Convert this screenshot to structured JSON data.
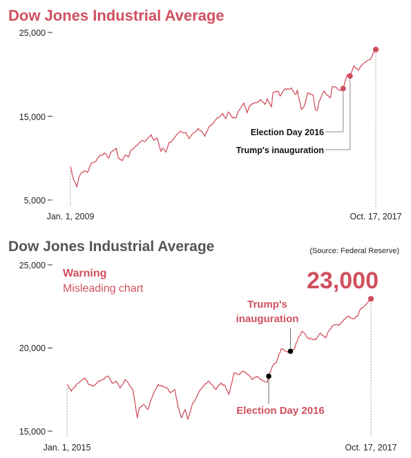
{
  "chart_data": [
    {
      "type": "line",
      "title": "Dow Jones Industrial Average",
      "ylim": [
        5000,
        25000
      ],
      "yticks": [
        "25,000",
        "15,000",
        "5,000"
      ],
      "ytick_values": [
        25000,
        15000,
        5000
      ],
      "x_labels": [
        "Jan. 1, 2009",
        "Oct. 17, 2017"
      ],
      "x_range": [
        "2009-01-01",
        "2017-10-17"
      ],
      "series": [
        {
          "x": [
            "2009-01-01",
            "2009-02-01",
            "2009-03-09",
            "2009-04-01",
            "2009-05-01",
            "2009-06-01",
            "2009-07-01",
            "2009-08-01",
            "2009-09-01",
            "2009-10-01",
            "2009-11-01",
            "2009-12-01",
            "2010-01-01",
            "2010-02-08",
            "2010-03-01",
            "2010-04-26",
            "2010-05-20",
            "2010-07-01",
            "2010-08-01",
            "2010-09-01",
            "2010-10-01",
            "2010-11-01",
            "2010-12-01",
            "2011-01-01",
            "2011-02-01",
            "2011-03-01",
            "2011-04-29",
            "2011-06-01",
            "2011-07-01",
            "2011-08-10",
            "2011-09-01",
            "2011-10-03",
            "2011-11-01",
            "2011-12-01",
            "2012-01-01",
            "2012-02-01",
            "2012-03-01",
            "2012-05-01",
            "2012-06-01",
            "2012-07-01",
            "2012-08-01",
            "2012-09-01",
            "2012-10-01",
            "2012-11-15",
            "2012-12-01",
            "2013-01-01",
            "2013-02-01",
            "2013-03-01",
            "2013-05-21",
            "2013-06-24",
            "2013-07-20",
            "2013-08-30",
            "2013-10-08",
            "2013-11-01",
            "2013-12-31",
            "2014-02-03",
            "2014-03-01",
            "2014-05-01",
            "2014-07-01",
            "2014-08-07",
            "2014-09-01",
            "2014-10-16",
            "2014-11-01",
            "2014-12-26",
            "2015-01-15",
            "2015-03-02",
            "2015-05-19",
            "2015-06-29",
            "2015-07-15",
            "2015-08-25",
            "2015-09-29",
            "2015-11-03",
            "2015-12-29",
            "2016-01-20",
            "2016-02-11",
            "2016-03-01",
            "2016-04-20",
            "2016-06-27",
            "2016-07-15",
            "2016-08-15",
            "2016-09-15",
            "2016-10-15",
            "2016-11-08",
            "2016-12-20",
            "2017-01-20",
            "2017-03-01",
            "2017-04-15",
            "2017-06-01",
            "2017-07-15",
            "2017-08-20",
            "2017-09-15",
            "2017-10-17"
          ],
          "values": [
            9000,
            7500,
            6547,
            7800,
            8300,
            8500,
            8300,
            9300,
            9500,
            9700,
            10300,
            10400,
            10600,
            10000,
            10700,
            11200,
            10000,
            9700,
            10400,
            10100,
            11000,
            11200,
            11500,
            11900,
            12100,
            12000,
            12800,
            12100,
            12400,
            10800,
            11200,
            10700,
            11800,
            12000,
            12500,
            12900,
            13200,
            13000,
            12300,
            12800,
            13100,
            13500,
            13300,
            12600,
            13100,
            13800,
            14000,
            14500,
            15350,
            14700,
            15500,
            14800,
            14800,
            15600,
            16580,
            15400,
            16300,
            16600,
            16950,
            16400,
            17100,
            16100,
            17800,
            18000,
            17400,
            18200,
            18300,
            17600,
            18100,
            15800,
            16300,
            17800,
            17500,
            15800,
            15700,
            16800,
            18000,
            17200,
            18500,
            18500,
            18200,
            18100,
            18300,
            19950,
            19800,
            21000,
            20500,
            21200,
            21600,
            21750,
            22400,
            22957
          ]
        }
      ],
      "annotations": [
        {
          "label": "Election Day 2016",
          "date": "2016-11-08",
          "value": 18300
        },
        {
          "label": "Trump's inauguration",
          "date": "2017-01-20",
          "value": 19800
        }
      ]
    },
    {
      "type": "line",
      "title": "Dow Jones Industrial Average",
      "source": "(Source: Federal Reserve)",
      "ylim": [
        15000,
        25000
      ],
      "yticks": [
        "25,000",
        "20,000",
        "15,000"
      ],
      "ytick_values": [
        25000,
        20000,
        15000
      ],
      "x_labels": [
        "Jan. 1, 2015",
        "Oct. 17, 2017"
      ],
      "x_range": [
        "2015-01-01",
        "2017-10-17"
      ],
      "warning": {
        "title": "Warning",
        "text": "Misleading chart"
      },
      "callout": "23,000",
      "series": [
        {
          "x": [
            "2015-01-01",
            "2015-01-15",
            "2015-02-01",
            "2015-02-15",
            "2015-03-02",
            "2015-03-15",
            "2015-04-01",
            "2015-04-15",
            "2015-05-01",
            "2015-05-19",
            "2015-06-01",
            "2015-06-15",
            "2015-06-29",
            "2015-07-15",
            "2015-08-01",
            "2015-08-10",
            "2015-08-25",
            "2015-09-01",
            "2015-09-15",
            "2015-09-29",
            "2015-10-15",
            "2015-11-03",
            "2015-11-20",
            "2015-12-01",
            "2015-12-15",
            "2015-12-29",
            "2016-01-08",
            "2016-01-20",
            "2016-02-01",
            "2016-02-11",
            "2016-02-25",
            "2016-03-15",
            "2016-04-01",
            "2016-04-20",
            "2016-05-01",
            "2016-05-15",
            "2016-06-01",
            "2016-06-15",
            "2016-06-27",
            "2016-07-15",
            "2016-08-01",
            "2016-08-15",
            "2016-09-01",
            "2016-09-15",
            "2016-10-01",
            "2016-10-15",
            "2016-11-03",
            "2016-11-08",
            "2016-11-20",
            "2016-12-05",
            "2016-12-20",
            "2017-01-05",
            "2017-01-20",
            "2017-02-01",
            "2017-02-15",
            "2017-03-01",
            "2017-03-20",
            "2017-04-15",
            "2017-05-01",
            "2017-05-17",
            "2017-06-01",
            "2017-06-15",
            "2017-07-01",
            "2017-07-15",
            "2017-08-01",
            "2017-08-20",
            "2017-09-01",
            "2017-09-15",
            "2017-10-01",
            "2017-10-17"
          ],
          "values": [
            17800,
            17400,
            17800,
            18000,
            18200,
            17800,
            17700,
            18000,
            18100,
            18300,
            17900,
            18000,
            17600,
            18100,
            17700,
            17500,
            15800,
            16400,
            16600,
            16300,
            17100,
            17800,
            17700,
            17600,
            17300,
            17500,
            16500,
            15800,
            16300,
            15700,
            16600,
            17200,
            17700,
            18000,
            17800,
            17500,
            17900,
            17700,
            17200,
            18500,
            18400,
            18600,
            18400,
            18100,
            18300,
            18100,
            17950,
            18300,
            18900,
            19200,
            19950,
            19800,
            19800,
            19900,
            20600,
            21000,
            20600,
            20500,
            20900,
            20600,
            21100,
            21400,
            21350,
            21600,
            21900,
            21750,
            21900,
            22400,
            22600,
            22957
          ]
        }
      ],
      "annotations": [
        {
          "label": "Election Day 2016",
          "date": "2016-11-08",
          "value": 18300
        },
        {
          "label": "Trump's inauguration",
          "label_lines": [
            "Trump's",
            "inauguration"
          ],
          "date": "2017-01-20",
          "value": 19800
        }
      ]
    }
  ]
}
